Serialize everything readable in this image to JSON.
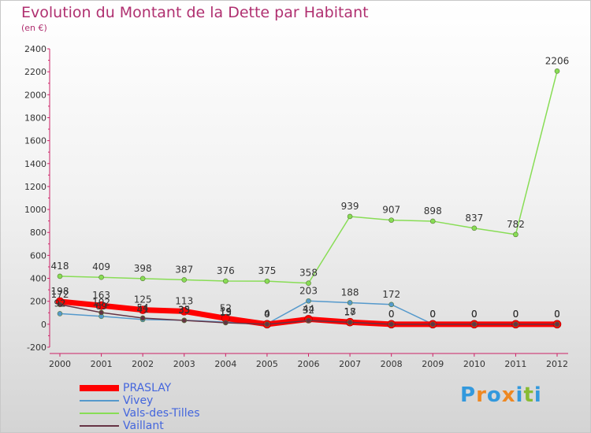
{
  "title": "Evolution du Montant de la Dette par Habitant",
  "subtitle": "(en €)",
  "brand": "Proxiti",
  "chart_data": {
    "type": "line",
    "x": [
      "2000",
      "2001",
      "2002",
      "2003",
      "2004",
      "2005",
      "2006",
      "2007",
      "2008",
      "2009",
      "2010",
      "2011",
      "2012"
    ],
    "ylim": [
      -200,
      2400
    ],
    "yticks": [
      -200,
      0,
      200,
      400,
      600,
      800,
      1000,
      1200,
      1400,
      1600,
      1800,
      2000,
      2200,
      2400
    ],
    "grid": false,
    "legend_position": "bottom-left",
    "series": [
      {
        "name": "PRASLAY",
        "color": "#ff0000",
        "values": [
          198,
          163,
          125,
          113,
          52,
          0,
          44,
          18,
          0,
          0,
          0,
          0,
          0
        ],
        "labels": [
          "198",
          "163",
          "125",
          "113",
          "52",
          "0",
          "44",
          "18",
          "0",
          "0",
          "0",
          "0",
          "0"
        ]
      },
      {
        "name": "Vivey",
        "color": "#5599cc",
        "values": [
          92,
          69,
          41,
          35,
          19,
          4,
          203,
          188,
          172,
          0,
          0,
          0,
          0
        ],
        "labels": [
          "92",
          "69",
          "41",
          "35",
          "19",
          "4",
          "203",
          "188",
          "172",
          "0",
          "0",
          "0",
          "0"
        ]
      },
      {
        "name": "Vals-des-Tilles",
        "color": "#88dd55",
        "values": [
          418,
          409,
          398,
          387,
          376,
          375,
          358,
          939,
          907,
          898,
          837,
          782,
          2206
        ],
        "labels": [
          "418",
          "409",
          "398",
          "387",
          "376",
          "375",
          "358",
          "939",
          "907",
          "898",
          "837",
          "782",
          "2206"
        ]
      },
      {
        "name": "Vaillant",
        "color": "#663344",
        "values": [
          172,
          102,
          54,
          33,
          13,
          0,
          32,
          17,
          0,
          0,
          0,
          0,
          0
        ],
        "labels": [
          "172",
          "102",
          "54",
          "33",
          "13",
          "0",
          "32",
          "17",
          "0",
          "0",
          "0",
          "0",
          "0"
        ]
      }
    ]
  }
}
